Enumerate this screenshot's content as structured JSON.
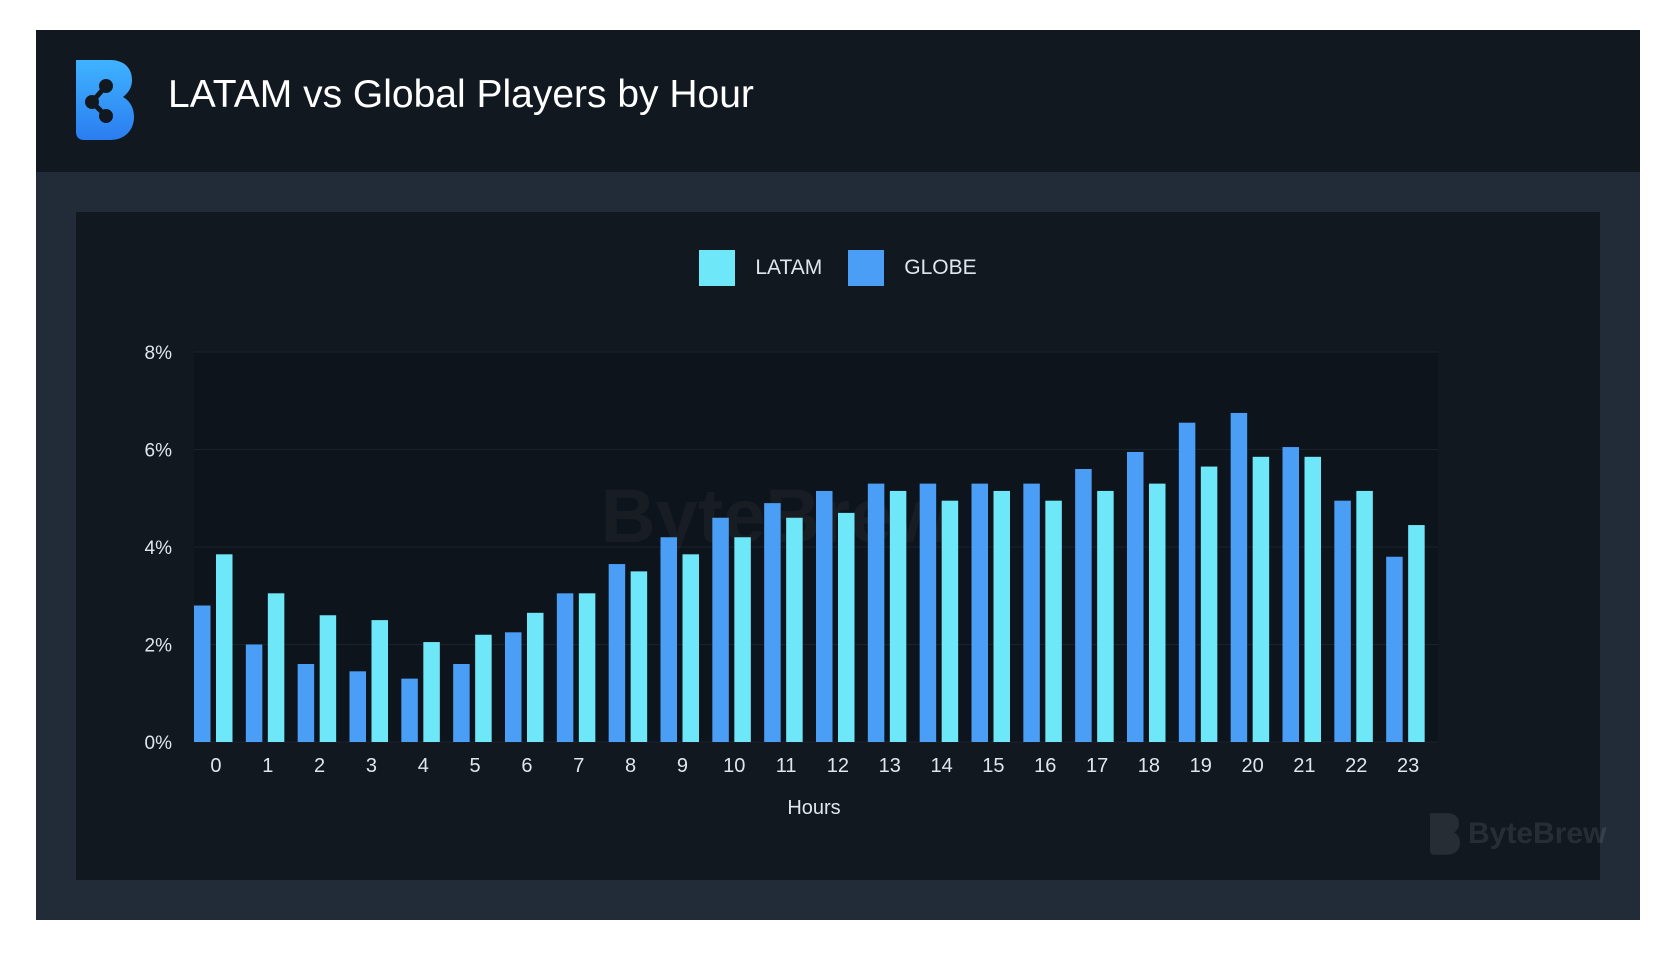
{
  "header": {
    "title": "LATAM vs Global Players by Hour"
  },
  "watermark": {
    "text": "ByteBrew"
  },
  "colors": {
    "latam": "#6ee8f8",
    "globe": "#4a9ef5",
    "background": "#111820",
    "frame": "#222c39"
  },
  "chart_data": {
    "type": "bar",
    "title": "LATAM vs Global Players by Hour",
    "xlabel": "Hours",
    "ylabel": "",
    "ylim": [
      0,
      8
    ],
    "yticks": [
      "0%",
      "2%",
      "4%",
      "6%",
      "8%"
    ],
    "categories": [
      "0",
      "1",
      "2",
      "3",
      "4",
      "5",
      "6",
      "7",
      "8",
      "9",
      "10",
      "11",
      "12",
      "13",
      "14",
      "15",
      "16",
      "17",
      "18",
      "19",
      "20",
      "21",
      "22",
      "23"
    ],
    "legend_position": "top-center",
    "series": [
      {
        "name": "GLOBE",
        "color": "#4a9ef5",
        "values": [
          2.8,
          2.0,
          1.6,
          1.45,
          1.3,
          1.6,
          2.25,
          3.05,
          3.65,
          4.2,
          4.6,
          4.9,
          5.15,
          5.3,
          5.3,
          5.3,
          5.3,
          5.6,
          5.95,
          6.55,
          6.75,
          6.05,
          4.95,
          3.8
        ]
      },
      {
        "name": "LATAM",
        "color": "#6ee8f8",
        "values": [
          3.85,
          3.05,
          2.6,
          2.5,
          2.05,
          2.2,
          2.65,
          3.05,
          3.5,
          3.85,
          4.2,
          4.6,
          4.7,
          5.15,
          4.95,
          5.15,
          4.95,
          5.15,
          5.3,
          5.65,
          5.85,
          5.85,
          5.15,
          4.45
        ]
      }
    ]
  }
}
